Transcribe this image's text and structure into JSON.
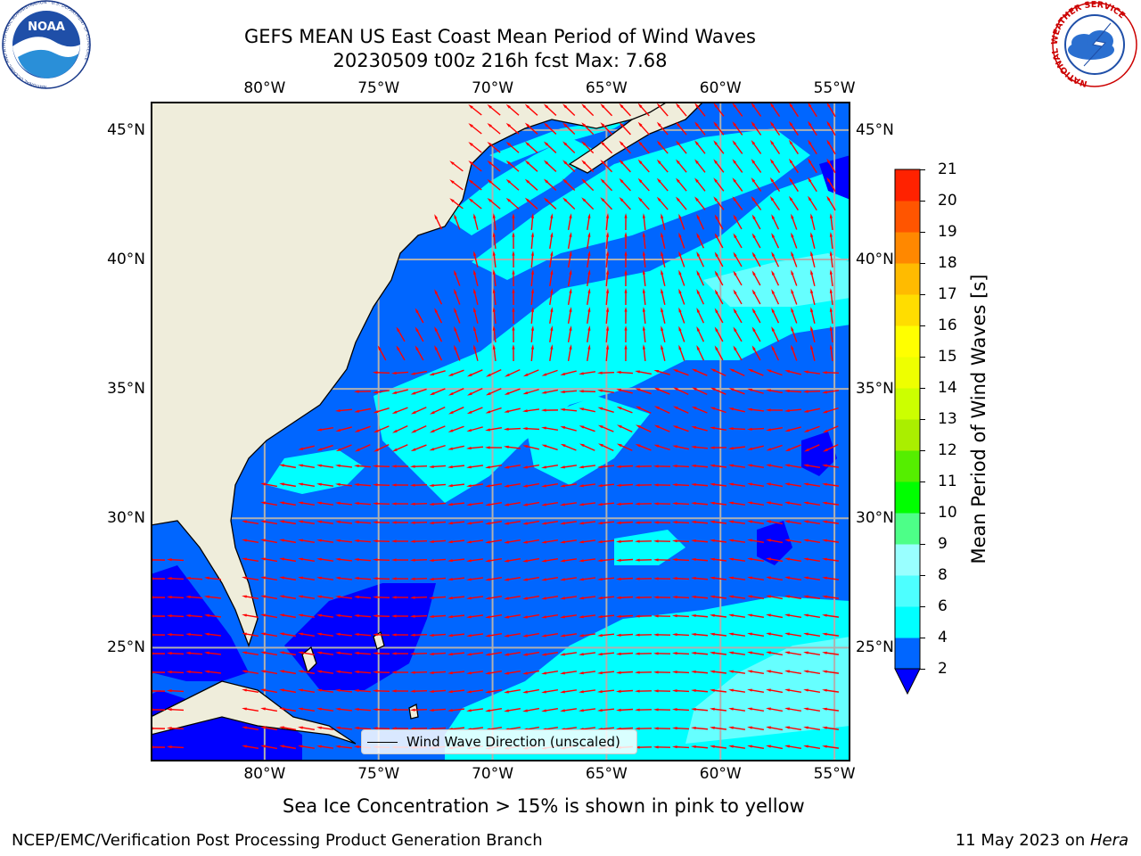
{
  "header": {
    "title": "GEFS MEAN US East Coast Mean Period of Wind Waves",
    "subtitle": "20230509 t00z 216h fcst   Max: 7.68"
  },
  "logos": {
    "noaa_text": "NOAA",
    "noaa_ring": "NATIONAL OCEANIC AND ATMOSPHERIC ADMINISTRATION · U.S. DEPARTMENT OF COMMERCE",
    "nws_ring": "NATIONAL WEATHER SERVICE"
  },
  "map": {
    "lon_ticks": [
      "80°W",
      "75°W",
      "70°W",
      "65°W",
      "60°W",
      "55°W"
    ],
    "lat_ticks": [
      "45°N",
      "40°N",
      "35°N",
      "30°N",
      "25°N"
    ],
    "lon_values": [
      -80,
      -75,
      -70,
      -65,
      -60,
      -55
    ],
    "lat_values": [
      45,
      40,
      35,
      30,
      25
    ],
    "extent": {
      "lon": [
        -85,
        -54.3
      ],
      "lat": [
        20.6,
        46.1
      ]
    },
    "colors": {
      "land": "#efeddb",
      "coast": "#000000",
      "grid": "#b0b0b0",
      "vector": "#ff0000"
    },
    "legend_label": "Wind Wave Direction (unscaled)"
  },
  "colorbar": {
    "title": "Mean Period of Wind Waves [s]",
    "levels": [
      2,
      4,
      6,
      8,
      9,
      10,
      11,
      12,
      13,
      14,
      15,
      16,
      17,
      18,
      19,
      20,
      21
    ],
    "labels": [
      "21",
      "20",
      "19",
      "18",
      "17",
      "16",
      "15",
      "14",
      "13",
      "12",
      "11",
      "10",
      "9",
      "8",
      "6",
      "4",
      "2"
    ],
    "colors": [
      "#0066ff",
      "#00ffff",
      "#4dffff",
      "#99ffff",
      "#4dff88",
      "#00ff00",
      "#55ee00",
      "#aaee00",
      "#ccff00",
      "#eeff00",
      "#ffff00",
      "#ffdd00",
      "#ffbb00",
      "#ff8800",
      "#ff5500",
      "#ff2200"
    ],
    "under_color": "#0000ff"
  },
  "footer": {
    "note": "Sea Ice Concentration > 15% is shown in pink to yellow",
    "credit": "NCEP/EMC/Verification Post Processing Product Generation Branch",
    "date": "11 May 2023 on ",
    "host": "Hera"
  }
}
